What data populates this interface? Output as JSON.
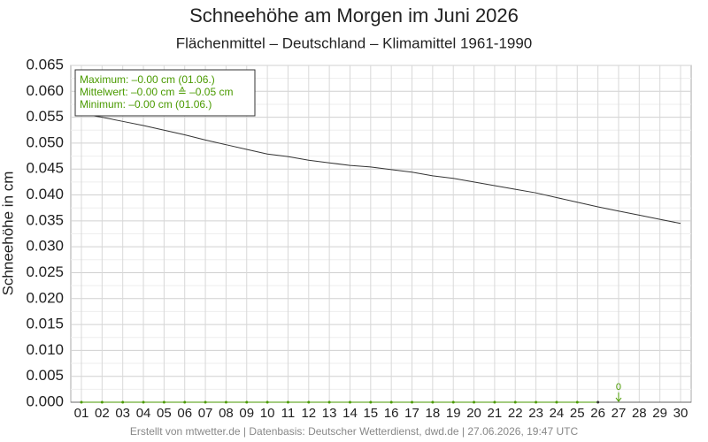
{
  "chart_data": {
    "type": "line",
    "title": "Schneehöhe am Morgen im Juni 2026",
    "subtitle": "Flächenmittel – Deutschland – Klimamittel 1961-1990",
    "y_label": "Schneehöhe in cm",
    "footer": "Erstellt von mtwetter.de | Datenbasis: Deutscher Wetterdienst, dwd.de | 27.06.2026, 19:47 UTC",
    "categories": [
      "01",
      "02",
      "03",
      "04",
      "05",
      "06",
      "07",
      "08",
      "09",
      "10",
      "11",
      "12",
      "13",
      "14",
      "15",
      "16",
      "17",
      "18",
      "19",
      "20",
      "21",
      "22",
      "23",
      "24",
      "25",
      "26",
      "27",
      "28",
      "29",
      "30"
    ],
    "series": [
      {
        "color": "#333333",
        "values": [
          0.0557,
          0.055,
          0.0542,
          0.0534,
          0.0525,
          0.0516,
          0.0506,
          0.0497,
          0.0488,
          0.0479,
          0.0474,
          0.0467,
          0.0462,
          0.0457,
          0.0454,
          0.0449,
          0.0444,
          0.0437,
          0.0432,
          0.0425,
          0.0418,
          0.0411,
          0.0404,
          0.0395,
          0.0386,
          0.0377,
          0.0369,
          0.0361,
          0.0353,
          0.0345
        ]
      },
      {
        "color": "#4a9a00",
        "values": [
          0,
          0,
          0,
          0,
          0,
          0,
          0,
          0,
          0,
          0,
          0,
          0,
          0,
          0,
          0,
          0,
          0,
          0,
          0,
          0,
          0,
          0,
          0,
          0,
          0,
          0,
          null,
          null,
          null,
          null
        ]
      }
    ],
    "ylim": [
      0,
      0.065
    ],
    "yticks": [
      {
        "value": 0,
        "label": "0.000"
      },
      0.005,
      {
        "value": 0.01,
        "label": "0.010"
      },
      0.015,
      {
        "value": 0.02,
        "label": "0.020"
      },
      0.025,
      {
        "value": 0.03,
        "label": "0.030"
      },
      0.035,
      {
        "value": 0.04,
        "label": "0.040"
      },
      0.045,
      {
        "value": 0.05,
        "label": "0.050"
      },
      0.055,
      {
        "value": 0.06,
        "label": "0.060"
      },
      0.065
    ],
    "grid": true,
    "stats_box": [
      "Maximum: –0.00 cm  (01.06.)",
      "Mittelwert: –0.00 cm ≙ –0.05 cm",
      "Minimum:  –0.00 cm  (01.06.)"
    ],
    "annotation": {
      "text": "0",
      "category": "27"
    }
  }
}
